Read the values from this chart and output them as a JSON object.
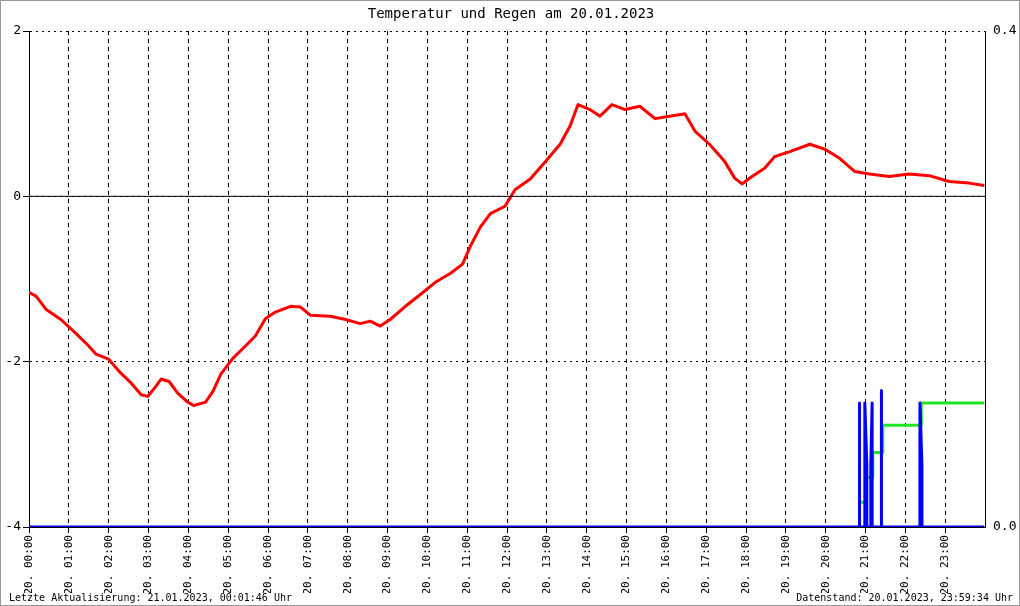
{
  "chart_data": {
    "type": "line",
    "title": "Temperatur und Regen am 20.01.2023",
    "xlim": [
      "2023-01-20T00:00",
      "2023-01-21T00:00"
    ],
    "xticks": [
      {
        "value": "2023-01-20T00:00",
        "label": "20. 00:00"
      },
      {
        "value": "2023-01-20T01:00",
        "label": "20. 01:00"
      },
      {
        "value": "2023-01-20T02:00",
        "label": "20. 02:00"
      },
      {
        "value": "2023-01-20T03:00",
        "label": "20. 03:00"
      },
      {
        "value": "2023-01-20T04:00",
        "label": "20. 04:00"
      },
      {
        "value": "2023-01-20T05:00",
        "label": "20. 05:00"
      },
      {
        "value": "2023-01-20T06:00",
        "label": "20. 06:00"
      },
      {
        "value": "2023-01-20T07:00",
        "label": "20. 07:00"
      },
      {
        "value": "2023-01-20T08:00",
        "label": "20. 08:00"
      },
      {
        "value": "2023-01-20T09:00",
        "label": "20. 09:00"
      },
      {
        "value": "2023-01-20T10:00",
        "label": "20. 10:00"
      },
      {
        "value": "2023-01-20T11:00",
        "label": "20. 11:00"
      },
      {
        "value": "2023-01-20T12:00",
        "label": "20. 12:00"
      },
      {
        "value": "2023-01-20T13:00",
        "label": "20. 13:00"
      },
      {
        "value": "2023-01-20T14:00",
        "label": "20. 14:00"
      },
      {
        "value": "2023-01-20T15:00",
        "label": "20. 15:00"
      },
      {
        "value": "2023-01-20T16:00",
        "label": "20. 16:00"
      },
      {
        "value": "2023-01-20T17:00",
        "label": "20. 17:00"
      },
      {
        "value": "2023-01-20T18:00",
        "label": "20. 18:00"
      },
      {
        "value": "2023-01-20T19:00",
        "label": "20. 19:00"
      },
      {
        "value": "2023-01-20T20:00",
        "label": "20. 20:00"
      },
      {
        "value": "2023-01-20T21:00",
        "label": "20. 21:00"
      },
      {
        "value": "2023-01-20T22:00",
        "label": "20. 22:00"
      },
      {
        "value": "2023-01-20T23:00",
        "label": "20. 23:00"
      }
    ],
    "ylim": [
      -4,
      2
    ],
    "yticks": [
      -4,
      -2,
      0,
      2
    ],
    "y2lim": [
      0,
      0.4
    ],
    "y2ticks": [
      {
        "value": 0,
        "label": "0.0"
      },
      0.4
    ],
    "grid": true,
    "legend": false,
    "marker": "none",
    "ref_lines": [
      {
        "axis": "y",
        "value": 0,
        "color": "#000000"
      }
    ],
    "annotations": [
      "Letzte Aktualisierung: 21.01.2023, 00:01:46 Uhr",
      "Datenstand: 20.01.2023, 23:59:34 Uhr"
    ],
    "series": [
      {
        "color": "#ff0000",
        "x": [
          "2023-01-20T00:00",
          "2023-01-20T00:11",
          "2023-01-20T00:26",
          "2023-01-20T00:48",
          "2023-01-20T01:11",
          "2023-01-20T01:30",
          "2023-01-20T01:41",
          "2023-01-20T02:00",
          "2023-01-20T02:16",
          "2023-01-20T02:34",
          "2023-01-20T02:49",
          "2023-01-20T02:59",
          "2023-01-20T03:11",
          "2023-01-20T03:19",
          "2023-01-20T03:31",
          "2023-01-20T03:44",
          "2023-01-20T03:59",
          "2023-01-20T04:08",
          "2023-01-20T04:26",
          "2023-01-20T04:37",
          "2023-01-20T04:49",
          "2023-01-20T05:07",
          "2023-01-20T05:26",
          "2023-01-20T05:41",
          "2023-01-20T05:56",
          "2023-01-20T06:11",
          "2023-01-20T06:34",
          "2023-01-20T06:49",
          "2023-01-20T07:04",
          "2023-01-20T07:34",
          "2023-01-20T07:57",
          "2023-01-20T08:19",
          "2023-01-20T08:34",
          "2023-01-20T08:49",
          "2023-01-20T09:04",
          "2023-01-20T09:27",
          "2023-01-20T09:49",
          "2023-01-20T10:12",
          "2023-01-20T10:35",
          "2023-01-20T10:53",
          "2023-01-20T11:05",
          "2023-01-20T11:20",
          "2023-01-20T11:35",
          "2023-01-20T11:57",
          "2023-01-20T12:12",
          "2023-01-20T12:35",
          "2023-01-20T12:58",
          "2023-01-20T13:20",
          "2023-01-20T13:35",
          "2023-01-20T13:47",
          "2023-01-20T14:05",
          "2023-01-20T14:20",
          "2023-01-20T14:38",
          "2023-01-20T14:58",
          "2023-01-20T15:20",
          "2023-01-20T15:43",
          "2023-01-20T16:05",
          "2023-01-20T16:28",
          "2023-01-20T16:43",
          "2023-01-20T17:05",
          "2023-01-20T17:28",
          "2023-01-20T17:43",
          "2023-01-20T17:54",
          "2023-01-20T18:09",
          "2023-01-20T18:28",
          "2023-01-20T18:43",
          "2023-01-20T19:06",
          "2023-01-20T19:36",
          "2023-01-20T19:59",
          "2023-01-20T20:21",
          "2023-01-20T20:44",
          "2023-01-20T21:06",
          "2023-01-20T21:36",
          "2023-01-20T22:06",
          "2023-01-20T22:36",
          "2023-01-20T23:06",
          "2023-01-20T23:36",
          "2023-01-20T23:59"
        ],
        "values": [
          -1.16,
          -1.21,
          -1.37,
          -1.49,
          -1.66,
          -1.81,
          -1.91,
          -1.97,
          -2.12,
          -2.26,
          -2.4,
          -2.42,
          -2.3,
          -2.21,
          -2.24,
          -2.38,
          -2.49,
          -2.53,
          -2.49,
          -2.36,
          -2.15,
          -1.96,
          -1.81,
          -1.69,
          -1.48,
          -1.4,
          -1.33,
          -1.34,
          -1.44,
          -1.45,
          -1.49,
          -1.54,
          -1.51,
          -1.57,
          -1.49,
          -1.33,
          -1.19,
          -1.04,
          -0.93,
          -0.82,
          -0.6,
          -0.37,
          -0.21,
          -0.12,
          0.08,
          0.21,
          0.42,
          0.63,
          0.85,
          1.11,
          1.05,
          0.97,
          1.11,
          1.05,
          1.09,
          0.94,
          0.97,
          1.0,
          0.79,
          0.63,
          0.42,
          0.22,
          0.15,
          0.24,
          0.34,
          0.48,
          0.54,
          0.63,
          0.57,
          0.46,
          0.3,
          0.27,
          0.24,
          0.27,
          0.25,
          0.18,
          0.16,
          0.13
        ]
      },
      {
        "axis": "y2",
        "color": "#0000ff",
        "x": [
          "2023-01-20T00:00",
          "2023-01-20T20:51",
          "2023-01-20T20:51",
          "2023-01-20T20:51",
          "2023-01-20T20:59",
          "2023-01-20T20:59",
          "2023-01-20T21:02",
          "2023-01-20T21:02",
          "2023-01-20T21:08",
          "2023-01-20T21:08",
          "2023-01-20T21:10",
          "2023-01-20T21:10",
          "2023-01-20T21:24",
          "2023-01-20T21:24",
          "2023-01-20T21:24",
          "2023-01-20T22:22",
          "2023-01-20T22:22",
          "2023-01-20T22:25",
          "2023-01-20T22:25",
          "2023-01-20T23:59"
        ],
        "values": [
          0,
          0,
          0.1,
          0,
          0,
          0.1,
          0.05,
          0,
          0,
          0.05,
          0.1,
          0,
          0,
          0.11,
          0,
          0,
          0.1,
          0.05,
          0,
          0
        ]
      },
      {
        "type": "step",
        "axis": "y2",
        "color": "#22e622",
        "x": [
          "2023-01-20T20:51",
          "2023-01-20T21:00",
          "2023-01-20T21:11",
          "2023-01-20T21:26",
          "2023-01-20T22:24",
          "2023-01-20T23:59"
        ],
        "values": [
          0.02,
          0.04,
          0.06,
          0.082,
          0.1,
          0.1
        ]
      }
    ]
  }
}
